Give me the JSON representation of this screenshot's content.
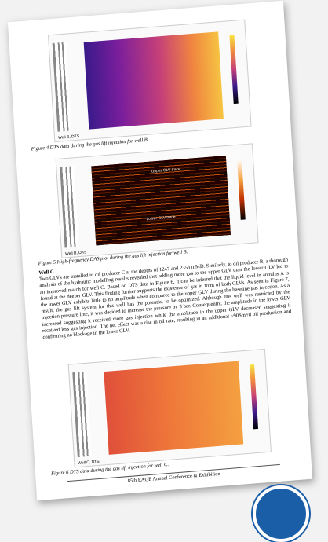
{
  "figures": [
    {
      "panel_label": "Well B, DTS",
      "caption": "Figure 4 DTS data during the gas lift injection for well B."
    },
    {
      "panel_label": "Well B, DAS",
      "upper_trace": "Upper GLV trace",
      "lower_trace": "Lower GLV trace",
      "caption": "Figure 5 High-frequency DAS plot during the gas lift injection for well B."
    },
    {
      "panel_label": "Well C, DTS",
      "caption": "Figure 6 DTS data during the gas lift injection for well C."
    }
  ],
  "section": {
    "heading": "Well C",
    "body": "Two GLVs are installed in oil producer C at the depths of 1247 and 2353 mMD. Similarly, to oil producer B, a thorough analysis of the hydraulic modelling results revealed that adding more gas to the upper GLV than the lower GLV led to an improved match for well C. Based on DTS data in Figure 6, it can be inferred that the liquid level in annulus A is found at the deeper GLV. This finding further supports the existence of gas in front of both GLVs. As seen in Figure 7, the lower GLV exhibits little to no amplitude when compared to the upper GLV during the baseline gas injection. As a result, the gas lift system for this well has the potential to be optimized. Although this well was restricted by the injection pressure line, it was decided to increase the pressure by 3 bar. Consequently, the amplitude in the lower GLV increased suggesting it received more gas injection while the amplitude in the upper GLV decreased suggesting it received less gas injection. The net effect was a rise in oil rate, resulting in an additional ~90Sm³/d oil production and confirming no blockage in the lower GLV."
  },
  "footer": {
    "conference": "85th EAGE Annual Conference & Exhibition"
  }
}
